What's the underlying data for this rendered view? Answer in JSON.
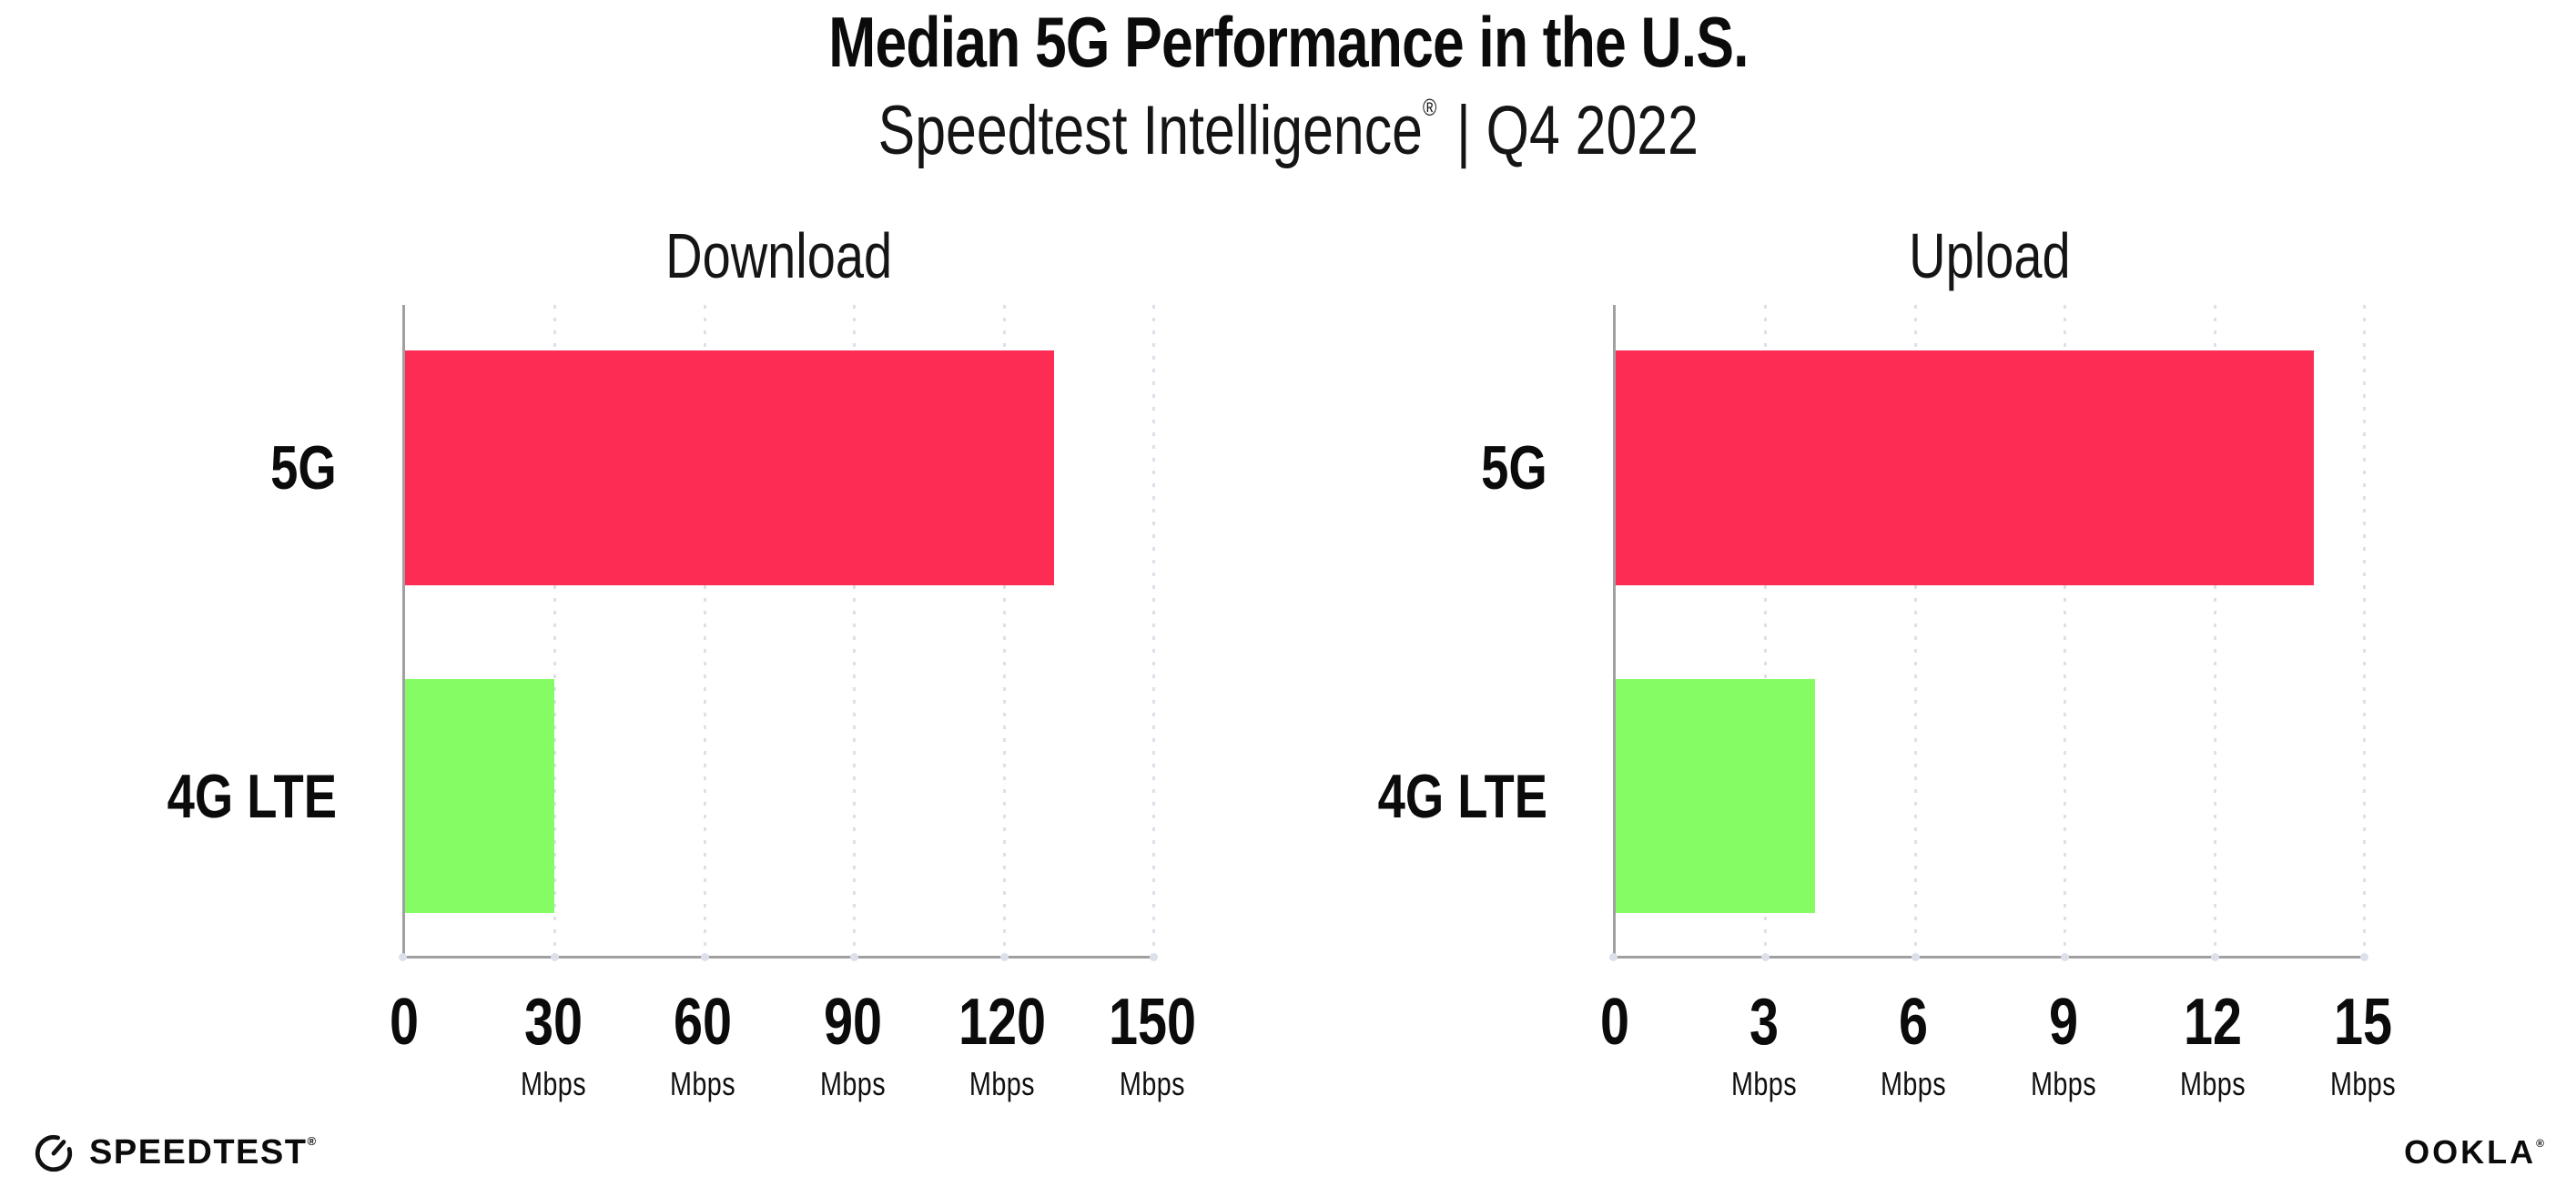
{
  "header": {
    "title": "Median 5G Performance in the U.S.",
    "subtitle_brand": "Speedtest Intelligence",
    "subtitle_regmark": "®",
    "subtitle_suffix": " | Q4 2022"
  },
  "chart_data": [
    {
      "type": "bar",
      "orientation": "horizontal",
      "title": "Download",
      "categories": [
        "5G",
        "4G LTE"
      ],
      "values": [
        130,
        30
      ],
      "unit": "Mbps",
      "xlim": [
        0,
        150.5
      ],
      "xticks": [
        0,
        30,
        60,
        90,
        120,
        150
      ],
      "bar_colors": [
        "#FC2C55",
        "#85FC64"
      ],
      "grid": "dotted-vertical-light"
    },
    {
      "type": "bar",
      "orientation": "horizontal",
      "title": "Upload",
      "categories": [
        "5G",
        "4G LTE"
      ],
      "values": [
        14,
        4
      ],
      "unit": "Mbps",
      "xlim": [
        0,
        15.05
      ],
      "xticks": [
        0,
        3,
        6,
        9,
        12,
        15
      ],
      "bar_colors": [
        "#FC2C55",
        "#85FC64"
      ],
      "grid": "dotted-vertical-light"
    }
  ],
  "footer": {
    "speedtest_label": "SPEEDTEST",
    "speedtest_regmark": "®",
    "ookla_label": "OOKLA",
    "ookla_regmark": "®"
  },
  "colors": {
    "bar_5g": "#FC2C55",
    "bar_4g_lte": "#85FC64",
    "axis": "#A0A0A0",
    "gridline": "#DDE0EA",
    "text": "#0B0B0B"
  }
}
